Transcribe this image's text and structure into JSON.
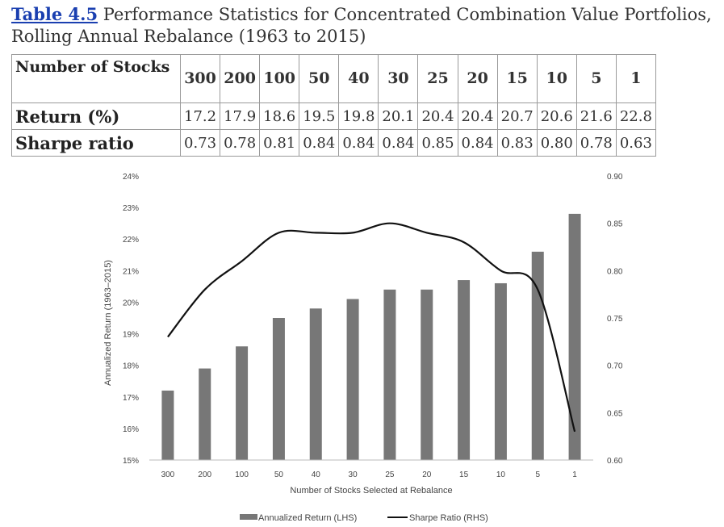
{
  "caption": {
    "tag": "Table 4.5",
    "title_line1": " Performance Statistics for Concentrated Combination Value Portfolios,",
    "title_line2": "Rolling Annual Rebalance (1963 to 2015)"
  },
  "table": {
    "row_labels": [
      "Number of Stocks",
      "Return (%)",
      "Sharpe ratio"
    ],
    "stocks": [
      "300",
      "200",
      "100",
      "50",
      "40",
      "30",
      "25",
      "20",
      "15",
      "10",
      "5",
      "1"
    ],
    "returns": [
      "17.2",
      "17.9",
      "18.6",
      "19.5",
      "19.8",
      "20.1",
      "20.4",
      "20.4",
      "20.7",
      "20.6",
      "21.6",
      "22.8"
    ],
    "sharpe": [
      "0.73",
      "0.78",
      "0.81",
      "0.84",
      "0.84",
      "0.84",
      "0.85",
      "0.84",
      "0.83",
      "0.80",
      "0.78",
      "0.63"
    ]
  },
  "chart_data": {
    "type": "bar",
    "categories": [
      "300",
      "200",
      "100",
      "50",
      "40",
      "30",
      "25",
      "20",
      "15",
      "10",
      "5",
      "1"
    ],
    "series": [
      {
        "name": "Annualized Return (LHS)",
        "type": "bar",
        "axis": "left",
        "values": [
          17.2,
          17.9,
          18.6,
          19.5,
          19.8,
          20.1,
          20.4,
          20.4,
          20.7,
          20.6,
          21.6,
          22.8
        ],
        "color": "#777777"
      },
      {
        "name": "Sharpe Ratio (RHS)",
        "type": "line",
        "axis": "right",
        "values": [
          0.73,
          0.78,
          0.81,
          0.84,
          0.84,
          0.84,
          0.85,
          0.84,
          0.83,
          0.8,
          0.78,
          0.63
        ],
        "color": "#111111"
      }
    ],
    "xlabel": "Number of Stocks Selected at Rebalance",
    "ylabel": "Annualized Return (1963–2015)",
    "ylim": [
      15,
      24
    ],
    "y2lim": [
      0.6,
      0.9
    ],
    "yticks": [
      "15%",
      "16%",
      "17%",
      "18%",
      "19%",
      "20%",
      "21%",
      "22%",
      "23%",
      "24%"
    ],
    "y2ticks": [
      "0.60",
      "0.65",
      "0.70",
      "0.75",
      "0.80",
      "0.85",
      "0.90"
    ],
    "grid": false,
    "legend_position": "bottom-center"
  }
}
